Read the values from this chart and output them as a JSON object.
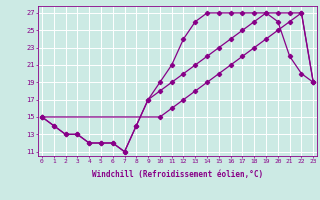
{
  "xlabel": "Windchill (Refroidissement éolien,°C)",
  "bg_color": "#cceae4",
  "line_color": "#880088",
  "grid_color": "#ffffff",
  "series1_x": [
    0,
    1,
    2,
    3,
    4,
    5,
    6,
    7,
    8,
    9,
    10,
    11,
    12,
    13,
    14,
    15,
    16,
    17,
    18,
    19,
    20,
    21,
    22,
    23
  ],
  "series1_y": [
    15,
    14,
    13,
    13,
    12,
    12,
    12,
    11,
    14,
    17,
    19,
    21,
    24,
    26,
    27,
    27,
    27,
    27,
    27,
    27,
    26,
    22,
    20,
    19
  ],
  "series2_x": [
    0,
    1,
    2,
    3,
    4,
    5,
    6,
    7,
    8,
    9,
    10,
    11,
    12,
    13,
    14,
    15,
    16,
    17,
    18,
    19,
    20,
    21,
    22,
    23
  ],
  "series2_y": [
    15,
    14,
    13,
    13,
    12,
    12,
    12,
    11,
    14,
    17,
    18,
    19,
    20,
    21,
    22,
    23,
    24,
    25,
    26,
    27,
    27,
    27,
    27,
    19
  ],
  "series3_x": [
    0,
    10,
    11,
    12,
    13,
    14,
    15,
    16,
    17,
    18,
    19,
    20,
    21,
    22,
    23
  ],
  "series3_y": [
    15,
    15,
    16,
    17,
    18,
    19,
    20,
    21,
    22,
    23,
    24,
    25,
    26,
    27,
    19
  ],
  "xlim": [
    -0.3,
    23.3
  ],
  "ylim": [
    10.5,
    27.8
  ],
  "yticks": [
    11,
    13,
    15,
    17,
    19,
    21,
    23,
    25,
    27
  ],
  "xticks": [
    0,
    1,
    2,
    3,
    4,
    5,
    6,
    7,
    8,
    9,
    10,
    11,
    12,
    13,
    14,
    15,
    16,
    17,
    18,
    19,
    20,
    21,
    22,
    23
  ],
  "marker": "D",
  "markersize": 2.2,
  "linewidth": 0.9
}
